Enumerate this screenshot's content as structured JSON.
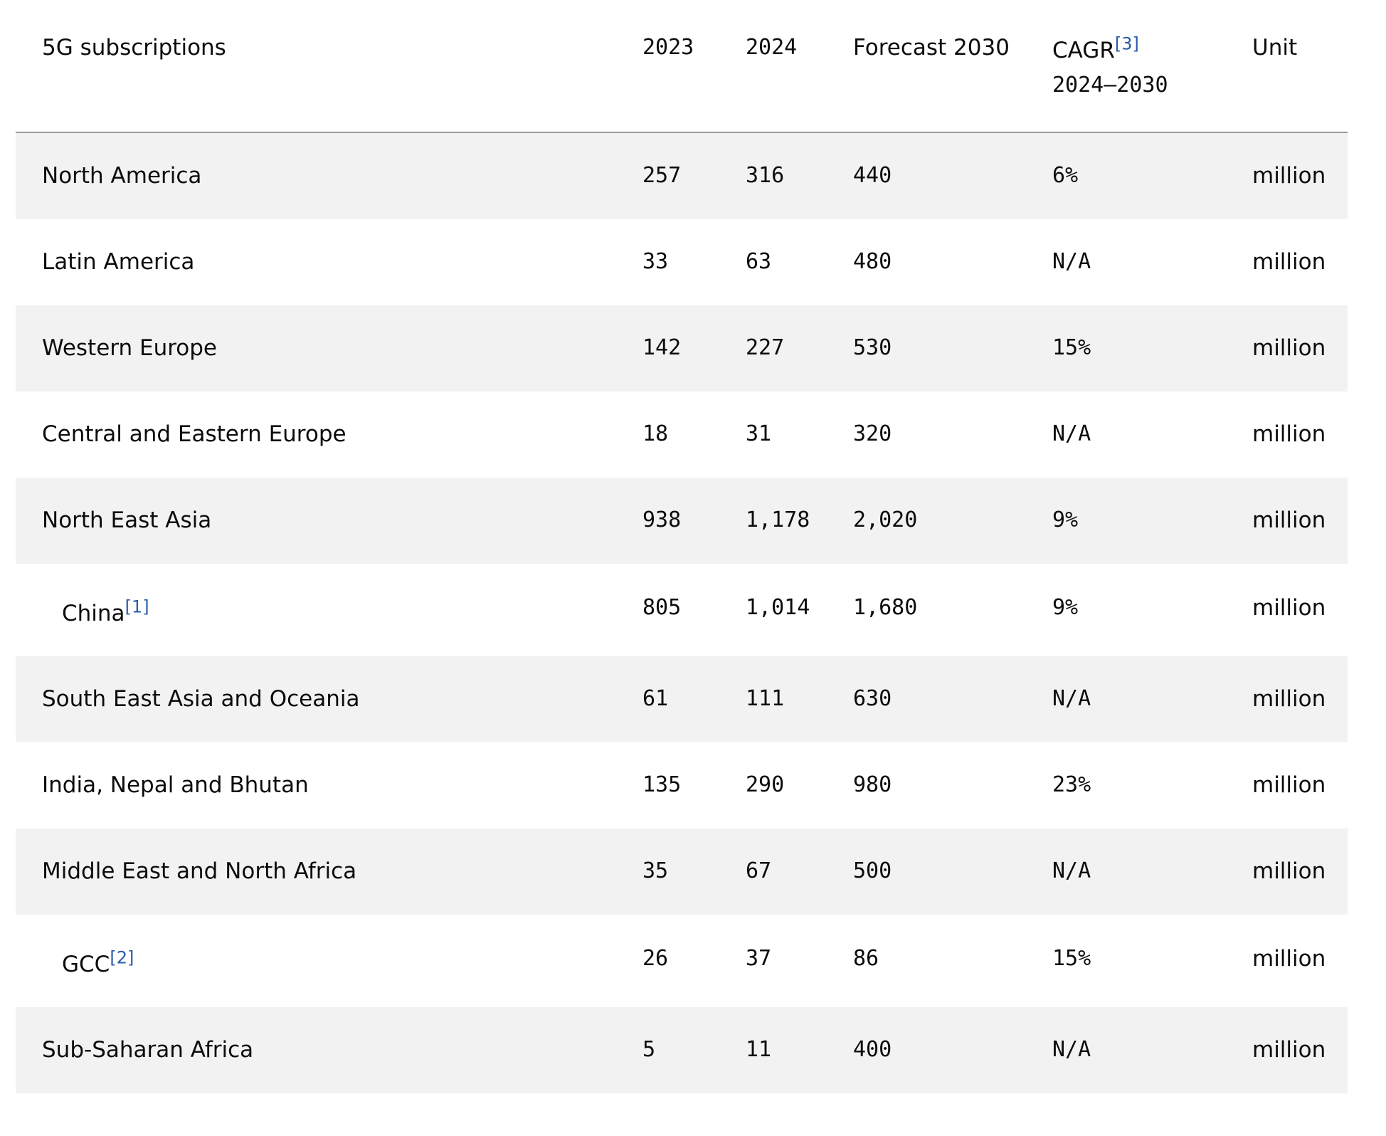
{
  "table": {
    "headers": {
      "region": "5G subscriptions",
      "y2023": "2023",
      "y2024": "2024",
      "forecast2030": "Forecast 2030",
      "cagr_line1": "CAGR",
      "cagr_footnote": "[3]",
      "cagr_line2": "2024–2030",
      "unit": "Unit"
    },
    "rows": [
      {
        "region": "North America",
        "footnote": "",
        "indent": false,
        "y2023": "257",
        "y2024": "316",
        "forecast2030": "440",
        "cagr": "6%",
        "unit": "million"
      },
      {
        "region": "Latin America",
        "footnote": "",
        "indent": false,
        "y2023": "33",
        "y2024": "63",
        "forecast2030": "480",
        "cagr": "N/A",
        "unit": "million"
      },
      {
        "region": "Western Europe",
        "footnote": "",
        "indent": false,
        "y2023": "142",
        "y2024": "227",
        "forecast2030": "530",
        "cagr": "15%",
        "unit": "million"
      },
      {
        "region": "Central and Eastern Europe",
        "footnote": "",
        "indent": false,
        "y2023": "18",
        "y2024": "31",
        "forecast2030": "320",
        "cagr": "N/A",
        "unit": "million"
      },
      {
        "region": "North East Asia",
        "footnote": "",
        "indent": false,
        "y2023": "938",
        "y2024": "1,178",
        "forecast2030": "2,020",
        "cagr": "9%",
        "unit": "million"
      },
      {
        "region": "China",
        "footnote": "[1]",
        "indent": true,
        "y2023": "805",
        "y2024": "1,014",
        "forecast2030": "1,680",
        "cagr": "9%",
        "unit": "million"
      },
      {
        "region": "South East Asia and Oceania",
        "footnote": "",
        "indent": false,
        "y2023": "61",
        "y2024": "111",
        "forecast2030": "630",
        "cagr": "N/A",
        "unit": "million"
      },
      {
        "region": "India, Nepal and Bhutan",
        "footnote": "",
        "indent": false,
        "y2023": "135",
        "y2024": "290",
        "forecast2030": "980",
        "cagr": "23%",
        "unit": "million"
      },
      {
        "region": "Middle East and North Africa",
        "footnote": "",
        "indent": false,
        "y2023": "35",
        "y2024": "67",
        "forecast2030": "500",
        "cagr": "N/A",
        "unit": "million"
      },
      {
        "region": "GCC",
        "footnote": "[2]",
        "indent": true,
        "y2023": "26",
        "y2024": "37",
        "forecast2030": "86",
        "cagr": "15%",
        "unit": "million"
      },
      {
        "region": "Sub-Saharan Africa",
        "footnote": "",
        "indent": false,
        "y2023": "5",
        "y2024": "11",
        "forecast2030": "400",
        "cagr": "N/A",
        "unit": "million"
      }
    ]
  },
  "colors": {
    "shaded_row": "#f2f2f2",
    "footnote_link": "#2a5aa8",
    "header_rule": "#9a9a9a"
  }
}
